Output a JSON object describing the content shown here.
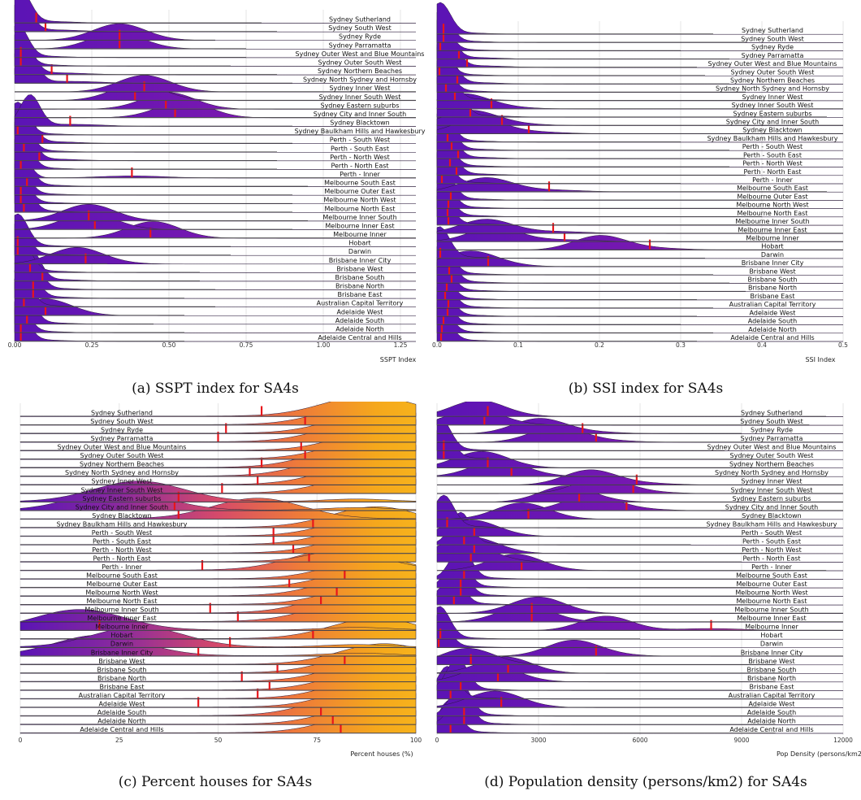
{
  "regions": [
    "Sydney Sutherland",
    "Sydney South West",
    "Sydney Ryde",
    "Sydney Parramatta",
    "Sydney Outer West and Blue Mountains",
    "Sydney Outer South West",
    "Sydney Northern Beaches",
    "Sydney North Sydney and Hornsby",
    "Sydney Inner West",
    "Sydney Inner South West",
    "Sydney Eastern suburbs",
    "Sydney City and Inner South",
    "Sydney Blacktown",
    "Sydney Baulkham Hills and Hawkesbury",
    "Perth - South West",
    "Perth - South East",
    "Perth - North West",
    "Perth - North East",
    "Perth - Inner",
    "Melbourne South East",
    "Melbourne Outer East",
    "Melbourne North West",
    "Melbourne North East",
    "Melbourne Inner South",
    "Melbourne Inner East",
    "Melbourne Inner",
    "Hobart",
    "Darwin",
    "Brisbane Inner City",
    "Brisbane West",
    "Brisbane South",
    "Brisbane North",
    "Brisbane East",
    "Australian Capital Territory",
    "Adelaide West",
    "Adelaide South",
    "Adelaide North",
    "Adelaide Central and Hills"
  ],
  "colors": {
    "purple": "#5b14b5",
    "orange": "#f5a81c",
    "marker": "#e8151b",
    "spine": "#555555",
    "grid": "#e6e6e6"
  },
  "chart_data": [
    {
      "type": "ridgeline",
      "id": "a",
      "caption": "(a) SSPT index for SA4s",
      "xlabel": "SSPT Index",
      "xlim": [
        0,
        1.3
      ],
      "ticks": [
        0,
        0.25,
        0.5,
        0.75,
        1.0,
        1.25
      ],
      "tick_labels": [
        "0.00",
        "0.25",
        "0.50",
        "0.75",
        "1.00",
        "1.25"
      ],
      "fill_mode": "value",
      "means": [
        0.07,
        0.1,
        0.34,
        0.34,
        0.02,
        0.02,
        0.12,
        0.17,
        0.42,
        0.39,
        0.49,
        0.52,
        0.18,
        0.01,
        0.09,
        0.03,
        0.08,
        0.02,
        0.38,
        0.04,
        0.02,
        0.02,
        0.03,
        0.24,
        0.26,
        0.44,
        0.01,
        0.01,
        0.23,
        0.05,
        0.09,
        0.06,
        0.06,
        0.03,
        0.1,
        0.04,
        0.02,
        0.02
      ],
      "peaks": [
        0.02,
        0.02,
        0.34,
        0.33,
        0.01,
        0.01,
        0.03,
        0.04,
        0.42,
        0.4,
        0.5,
        0.55,
        0.05,
        0.01,
        0.03,
        0.02,
        0.03,
        0.02,
        0.01,
        0.02,
        0.01,
        0.01,
        0.02,
        0.24,
        0.24,
        0.45,
        0.01,
        0.01,
        0.2,
        0.02,
        0.05,
        0.05,
        0.04,
        0.02,
        0.1,
        0.03,
        0.01,
        0.01
      ],
      "extents": [
        0.8,
        0.85,
        0.65,
        0.75,
        0.75,
        0.7,
        0.85,
        0.9,
        1.3,
        1.3,
        1.2,
        1.3,
        0.9,
        1.0,
        0.9,
        0.85,
        0.85,
        0.85,
        1.3,
        0.95,
        0.9,
        0.9,
        0.9,
        0.95,
        0.9,
        1.3,
        0.7,
        0.7,
        0.3,
        0.6,
        0.6,
        0.65,
        0.55,
        0.65,
        0.55,
        0.45,
        0.55,
        0.55
      ]
    },
    {
      "type": "ridgeline",
      "id": "b",
      "caption": "(b) SSI index for SA4s",
      "xlabel": "SSI Index",
      "xlim": [
        0,
        0.5
      ],
      "ticks": [
        0,
        0.1,
        0.2,
        0.3,
        0.4,
        0.5
      ],
      "tick_labels": [
        "0.0",
        "0.1",
        "0.2",
        "0.3",
        "0.4",
        "0.5"
      ],
      "fill_mode": "value",
      "means": [
        0.008,
        0.008,
        0.004,
        0.027,
        0.037,
        0.003,
        0.025,
        0.011,
        0.022,
        0.067,
        0.041,
        0.08,
        0.113,
        0.013,
        0.018,
        0.026,
        0.016,
        0.024,
        0.006,
        0.138,
        0.017,
        0.014,
        0.013,
        0.014,
        0.143,
        0.157,
        0.262,
        0.004,
        0.063,
        0.015,
        0.018,
        0.012,
        0.01,
        0.014,
        0.013,
        0.008,
        0.006,
        0.005
      ],
      "peaks": [
        0.004,
        0.004,
        0.003,
        0.008,
        0.012,
        0.002,
        0.01,
        0.005,
        0.01,
        0.03,
        0.02,
        0.04,
        0.05,
        0.006,
        0.008,
        0.01,
        0.006,
        0.01,
        0.004,
        0.06,
        0.007,
        0.006,
        0.005,
        0.005,
        0.06,
        0.07,
        0.2,
        0.003,
        0.04,
        0.006,
        0.008,
        0.005,
        0.004,
        0.006,
        0.005,
        0.004,
        0.003,
        0.003
      ],
      "extents": [
        0.34,
        0.38,
        0.3,
        0.36,
        0.32,
        0.33,
        0.36,
        0.38,
        0.46,
        0.5,
        0.48,
        0.5,
        0.5,
        0.3,
        0.36,
        0.38,
        0.36,
        0.38,
        0.3,
        0.48,
        0.42,
        0.44,
        0.4,
        0.42,
        0.5,
        0.5,
        0.5,
        0.33,
        0.38,
        0.34,
        0.36,
        0.38,
        0.32,
        0.34,
        0.32,
        0.3,
        0.34,
        0.32
      ]
    },
    {
      "type": "ridgeline",
      "id": "c",
      "caption": "(c) Percent houses for SA4s",
      "xlabel": "Percent houses (%)",
      "xlim": [
        0,
        100
      ],
      "ticks": [
        0,
        25,
        50,
        75,
        100
      ],
      "tick_labels": [
        "0",
        "25",
        "50",
        "75",
        "100"
      ],
      "fill_mode": "position",
      "means": [
        61,
        72,
        52,
        50,
        71,
        72,
        61,
        58,
        60,
        51,
        40,
        39,
        40,
        74,
        64,
        64,
        69,
        73,
        46,
        82,
        68,
        80,
        76,
        48,
        55,
        20,
        74,
        53,
        45,
        82,
        65,
        56,
        63,
        60,
        45,
        76,
        79,
        81
      ],
      "peaks": [
        88,
        88,
        90,
        88,
        92,
        90,
        85,
        84,
        88,
        90,
        30,
        25,
        60,
        90,
        90,
        90,
        90,
        90,
        80,
        90,
        90,
        88,
        90,
        85,
        85,
        15,
        90,
        30,
        20,
        92,
        90,
        90,
        90,
        90,
        90,
        85,
        90,
        90
      ],
      "extents": [
        0,
        0,
        0,
        0,
        0,
        0,
        0,
        0,
        0,
        0,
        0,
        0,
        0,
        0,
        0,
        0,
        0,
        0,
        0,
        0,
        0,
        0,
        0,
        0,
        0,
        0,
        0,
        0,
        0,
        0,
        0,
        0,
        0,
        0,
        0,
        0,
        0,
        0
      ]
    },
    {
      "type": "ridgeline",
      "id": "d",
      "caption": "(d) Population density (persons/km2) for SA4s",
      "xlabel": "Pop Density (persons/km2)",
      "xlim": [
        0,
        12000
      ],
      "ticks": [
        0,
        3000,
        6000,
        9000,
        12000
      ],
      "tick_labels": [
        "0",
        "3000",
        "6000",
        "9000",
        "12000"
      ],
      "fill_mode": "value",
      "means": [
        1500,
        1400,
        4300,
        4700,
        200,
        200,
        1500,
        2200,
        5900,
        5800,
        4200,
        5600,
        2700,
        300,
        1100,
        800,
        1100,
        1000,
        2500,
        800,
        700,
        700,
        500,
        2800,
        2800,
        8100,
        100,
        50,
        4700,
        1000,
        2100,
        1800,
        700,
        400,
        1900,
        800,
        800,
        400
      ],
      "peaks": [
        1200,
        1100,
        3000,
        3500,
        100,
        150,
        1300,
        1800,
        4500,
        4800,
        3800,
        4500,
        2500,
        200,
        1000,
        700,
        1000,
        900,
        2300,
        700,
        600,
        600,
        450,
        3000,
        2600,
        5000,
        80,
        40,
        4000,
        900,
        2000,
        1600,
        600,
        300,
        1700,
        700,
        700,
        350
      ],
      "extents": [
        11500,
        11000,
        9000,
        12000,
        8500,
        10000,
        11000,
        11500,
        12000,
        12000,
        12000,
        12000,
        10000,
        8000,
        10500,
        7500,
        10000,
        9000,
        11500,
        10000,
        9500,
        10000,
        9500,
        12000,
        12000,
        12000,
        6000,
        5000,
        12000,
        10000,
        10500,
        10000,
        9000,
        11000,
        9500,
        10500,
        10000,
        10000
      ]
    }
  ]
}
